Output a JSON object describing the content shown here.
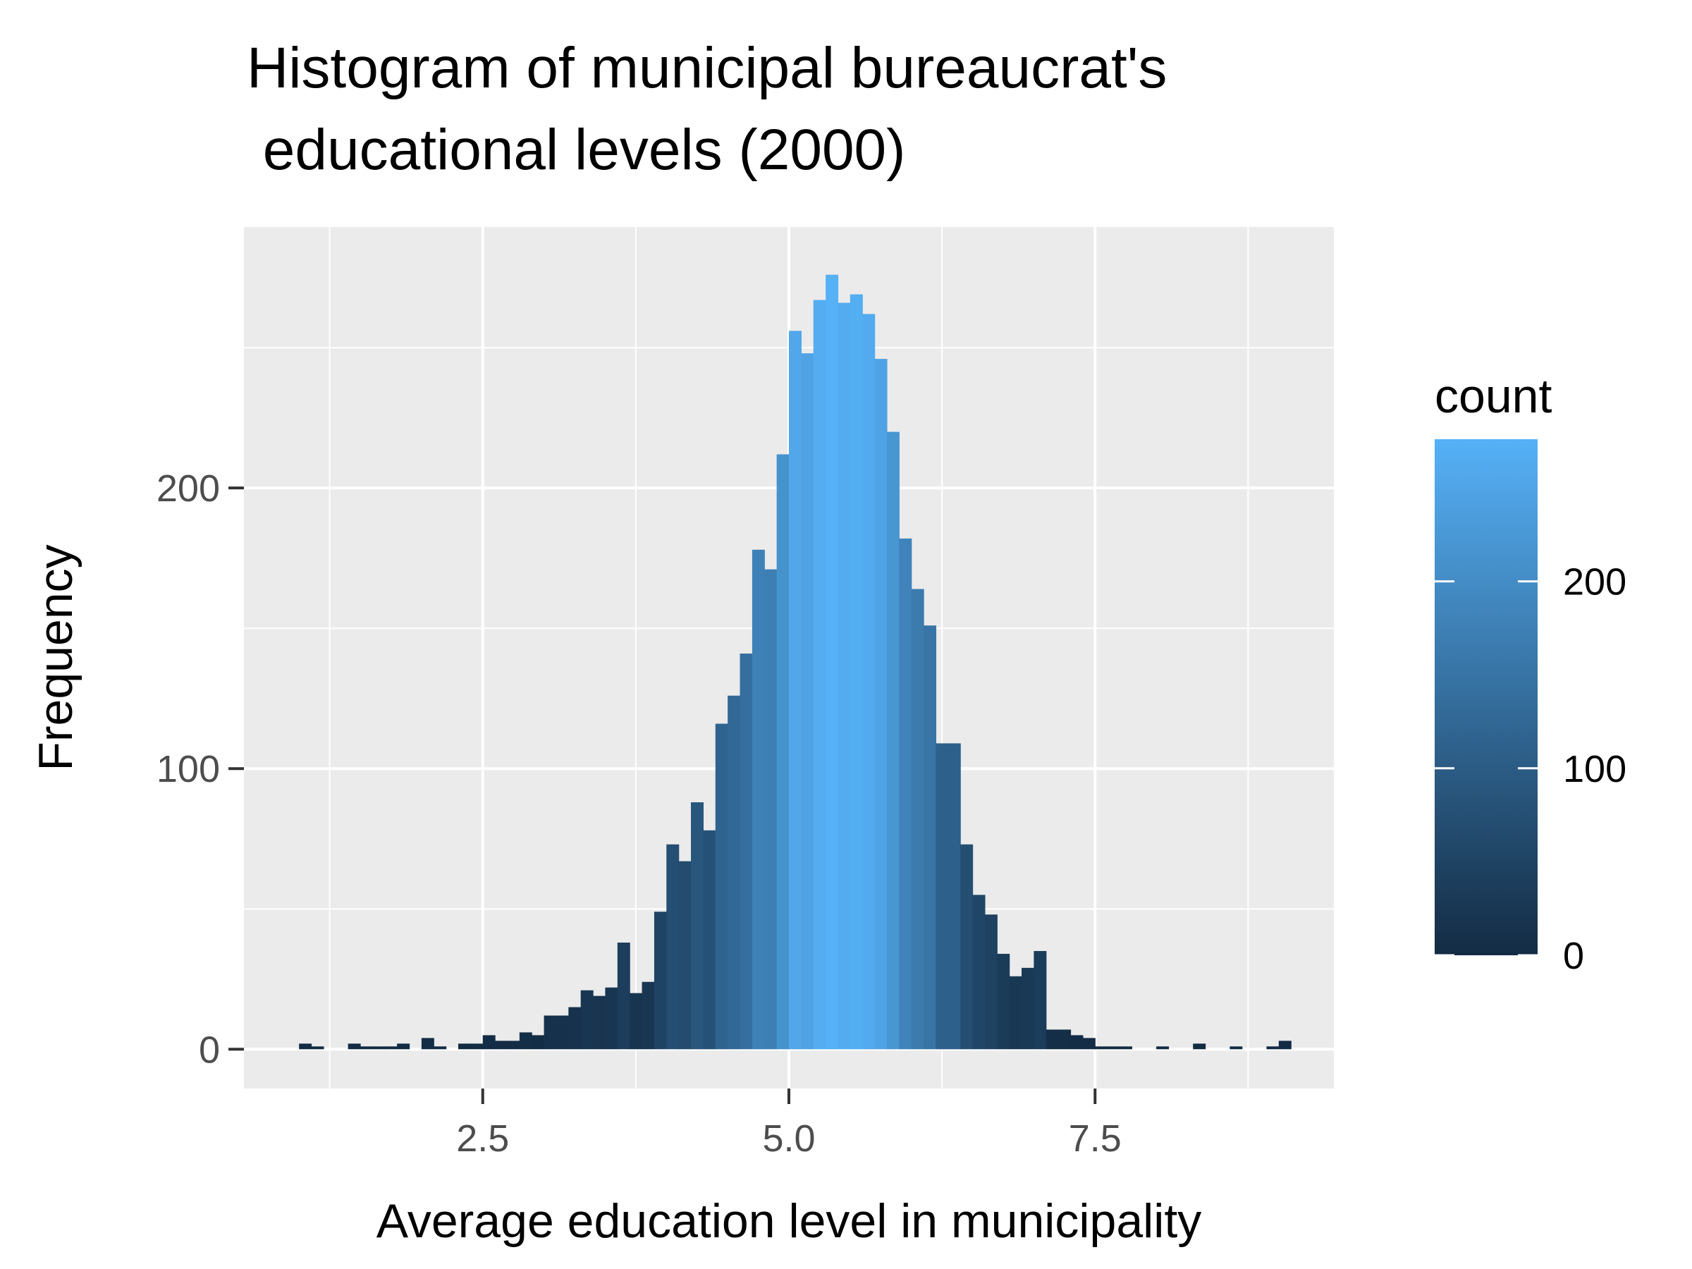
{
  "chart_data": {
    "type": "bar",
    "title": "Histogram of municipal bureaucrat's educational levels (2000)",
    "title_lines": [
      "Histogram of municipal bureaucrat's",
      " educational levels (2000)"
    ],
    "xlabel": "Average education level in municipality",
    "ylabel": "Frequency",
    "xlim": [
      0.55,
      9.45
    ],
    "ylim": [
      -14,
      293
    ],
    "x_ticks": [
      2.5,
      5.0,
      7.5
    ],
    "x_tick_labels": [
      "2.5",
      "5.0",
      "7.5"
    ],
    "x_minor_ticks": [
      1.25,
      3.75,
      6.25,
      8.75
    ],
    "y_ticks": [
      0,
      100,
      200
    ],
    "y_tick_labels": [
      "0",
      "100",
      "200"
    ],
    "y_minor_ticks": [
      50,
      150,
      250
    ],
    "grid": true,
    "bin_width": 0.1,
    "bin_start": 1.0,
    "values": [
      2,
      1,
      0,
      0,
      2,
      1,
      1,
      1,
      2,
      0,
      4,
      1,
      0,
      2,
      2,
      5,
      3,
      3,
      6,
      5,
      12,
      12,
      15,
      21,
      19,
      22,
      38,
      20,
      24,
      49,
      73,
      67,
      88,
      78,
      116,
      126,
      141,
      178,
      171,
      212,
      256,
      248,
      267,
      276,
      266,
      269,
      262,
      246,
      220,
      182,
      164,
      151,
      109,
      109,
      73,
      55,
      48,
      34,
      26,
      29,
      35,
      7,
      7,
      5,
      4,
      1,
      1,
      1,
      0,
      0,
      1,
      0,
      0,
      2,
      0,
      0,
      1,
      0,
      0,
      1,
      3
    ],
    "fill_low": "#132b43",
    "fill_high": "#56b1f7",
    "legend": {
      "title": "count",
      "position": "right",
      "range": [
        0,
        276
      ],
      "tick_values": [
        0,
        100,
        200
      ],
      "tick_labels": [
        "0",
        "100",
        "200"
      ]
    },
    "panel_background": "#ebebeb",
    "grid_color": "#ffffff"
  }
}
